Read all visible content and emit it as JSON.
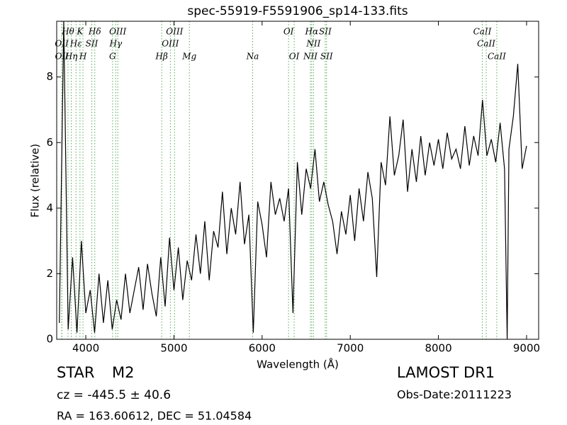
{
  "chart_data": {
    "type": "line",
    "title": "spec-55919-F5591906_sp14-133.fits",
    "x_label": "Wavelength (Å)",
    "y_label": "Flux (relative)",
    "color": "#000000",
    "xlim": [
      3670,
      9137
    ],
    "ylim": [
      0,
      9.7
    ],
    "xticks": [
      4000,
      5000,
      6000,
      7000,
      8000,
      9000
    ],
    "yticks": [
      0,
      2,
      4,
      6,
      8
    ],
    "x": [
      3700,
      3750,
      3800,
      3850,
      3900,
      3950,
      4000,
      4050,
      4100,
      4150,
      4200,
      4250,
      4300,
      4350,
      4400,
      4450,
      4500,
      4550,
      4600,
      4650,
      4700,
      4750,
      4800,
      4850,
      4900,
      4950,
      5000,
      5050,
      5100,
      5150,
      5200,
      5250,
      5300,
      5350,
      5400,
      5450,
      5500,
      5550,
      5600,
      5650,
      5700,
      5750,
      5800,
      5850,
      5900,
      5950,
      6000,
      6050,
      6100,
      6150,
      6200,
      6250,
      6300,
      6350,
      6400,
      6450,
      6500,
      6550,
      6600,
      6650,
      6700,
      6750,
      6800,
      6850,
      6900,
      6950,
      7000,
      7050,
      7100,
      7150,
      7200,
      7250,
      7300,
      7350,
      7400,
      7450,
      7500,
      7550,
      7600,
      7650,
      7700,
      7750,
      7800,
      7850,
      7900,
      7950,
      8000,
      8050,
      8100,
      8150,
      8200,
      8250,
      8300,
      8350,
      8400,
      8450,
      8500,
      8550,
      8600,
      8650,
      8700,
      8750,
      8780,
      8800,
      8850,
      8900,
      8950,
      9000
    ],
    "values": [
      0.5,
      9.7,
      0.3,
      2.5,
      0.2,
      3,
      0.8,
      1.5,
      0.2,
      2,
      0.5,
      1.8,
      0.3,
      1.2,
      0.6,
      2,
      0.8,
      1.5,
      2.2,
      0.9,
      2.3,
      1.4,
      0.7,
      2.5,
      1,
      3.1,
      1.5,
      2.8,
      1.2,
      2.4,
      1.8,
      3.2,
      2,
      3.6,
      1.8,
      3.3,
      2.8,
      4.5,
      2.6,
      4,
      3.2,
      4.8,
      2.9,
      3.8,
      0.2,
      4.2,
      3.5,
      2.5,
      4.8,
      3.8,
      4.3,
      3.6,
      4.6,
      0.8,
      5.4,
      3.8,
      5.2,
      4.6,
      5.8,
      4.2,
      4.8,
      4.1,
      3.6,
      2.6,
      3.9,
      3.2,
      4.4,
      3,
      4.6,
      3.6,
      5.1,
      4.3,
      1.9,
      5.4,
      4.7,
      6.8,
      5,
      5.6,
      6.7,
      4.5,
      5.8,
      4.8,
      6.2,
      5,
      6,
      5.3,
      6.1,
      5.2,
      6.3,
      5.5,
      5.8,
      5.2,
      6.5,
      5.3,
      6.2,
      5.6,
      7.3,
      5.6,
      6.1,
      5.4,
      6.6,
      5.2,
      0,
      5.8,
      6.8,
      8.4,
      5.2,
      5.9
    ],
    "line_color": "#55aa55",
    "lines": [
      {
        "label": "OII",
        "x": 3727
      },
      {
        "label": "OII",
        "x": 3729
      },
      {
        "label": "Hθ",
        "x": 3798
      },
      {
        "label": "Hε",
        "x": 3889
      },
      {
        "label": "Hη",
        "x": 3835
      },
      {
        "label": "K",
        "x": 3934
      },
      {
        "label": "H",
        "x": 3968
      },
      {
        "label": "SII",
        "x": 4068
      },
      {
        "label": "Hδ",
        "x": 4102
      },
      {
        "label": "G",
        "x": 4304
      },
      {
        "label": "Hγ",
        "x": 4340
      },
      {
        "label": "OIII",
        "x": 4363
      },
      {
        "label": "Hβ",
        "x": 4861
      },
      {
        "label": "OIII",
        "x": 4959
      },
      {
        "label": "OIII",
        "x": 5007
      },
      {
        "label": "Mg",
        "x": 5175
      },
      {
        "label": "Na",
        "x": 5893
      },
      {
        "label": "OI",
        "x": 6300
      },
      {
        "label": "OI",
        "x": 6364
      },
      {
        "label": "NII",
        "x": 6548
      },
      {
        "label": "Hα",
        "x": 6563
      },
      {
        "label": "NII",
        "x": 6583
      },
      {
        "label": "SII",
        "x": 6716
      },
      {
        "label": "SII",
        "x": 6731
      },
      {
        "label": "CaII",
        "x": 8498
      },
      {
        "label": "CaII",
        "x": 8542
      },
      {
        "label": "CaII",
        "x": 8662
      }
    ]
  },
  "info": {
    "object_class": "STAR",
    "subclass": "M2",
    "redshift": "cz = -445.5 ± 40.6",
    "coords": "RA = 163.60612, DEC = 51.04584",
    "survey": "LAMOST DR1",
    "obs_date": "Obs-Date:20111223"
  }
}
